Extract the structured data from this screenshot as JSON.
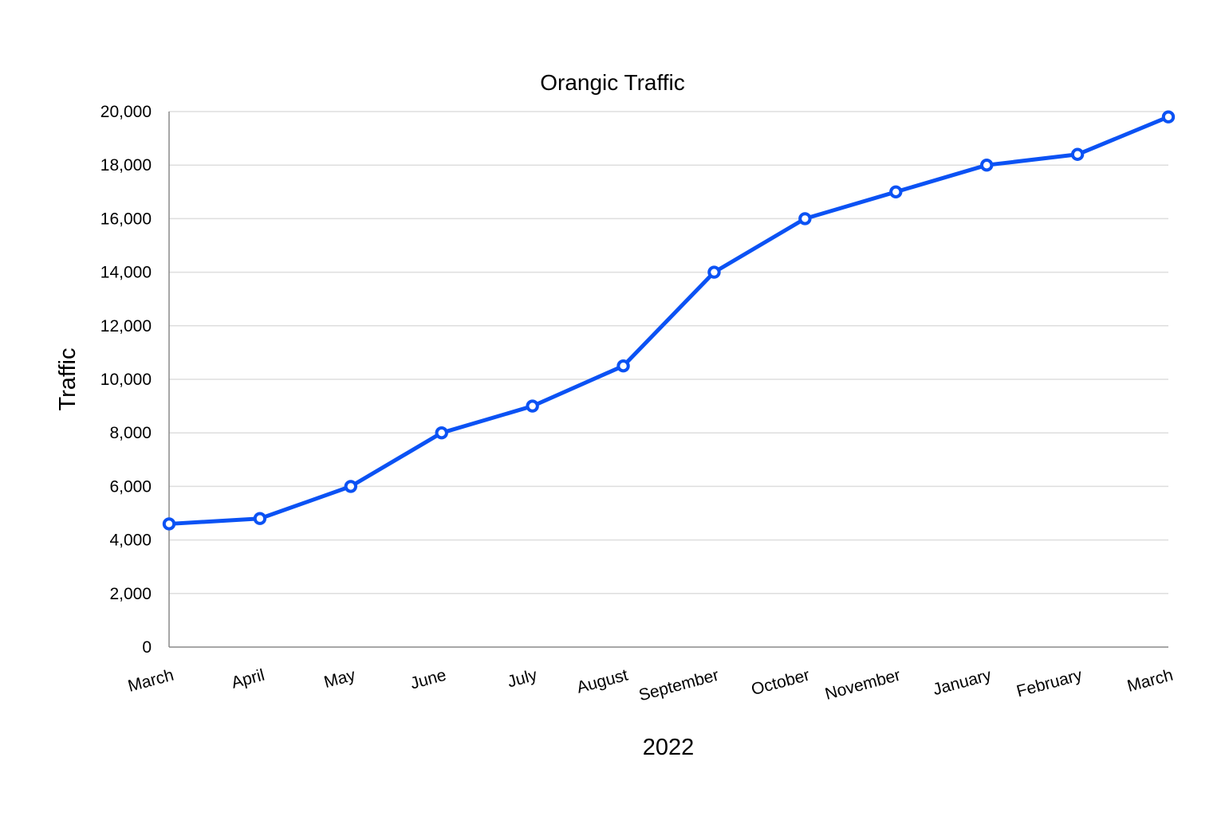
{
  "chart_data": {
    "type": "line",
    "title": "Orangic Traffic",
    "xlabel": "2022",
    "ylabel": "Traffic",
    "categories": [
      "March",
      "April",
      "May",
      "June",
      "July",
      "August",
      "September",
      "October",
      "November",
      "January",
      "February",
      "March"
    ],
    "series": [
      {
        "values": [
          4600,
          4800,
          6000,
          8000,
          9000,
          10500,
          14000,
          16000,
          17000,
          18000,
          18400,
          19800
        ]
      }
    ],
    "ylim": [
      0,
      20000
    ],
    "yticks": [
      "0",
      "2,000",
      "4,000",
      "6,000",
      "8,000",
      "10,000",
      "12,000",
      "14,000",
      "16,000",
      "18,000",
      "20,000"
    ],
    "grid": true,
    "legend": "none",
    "colors": {
      "line": "#0b52f4",
      "marker_fill": "#ffffff",
      "grid": "#dedede",
      "axis": "#8a8a8a",
      "text": "#000000"
    }
  }
}
